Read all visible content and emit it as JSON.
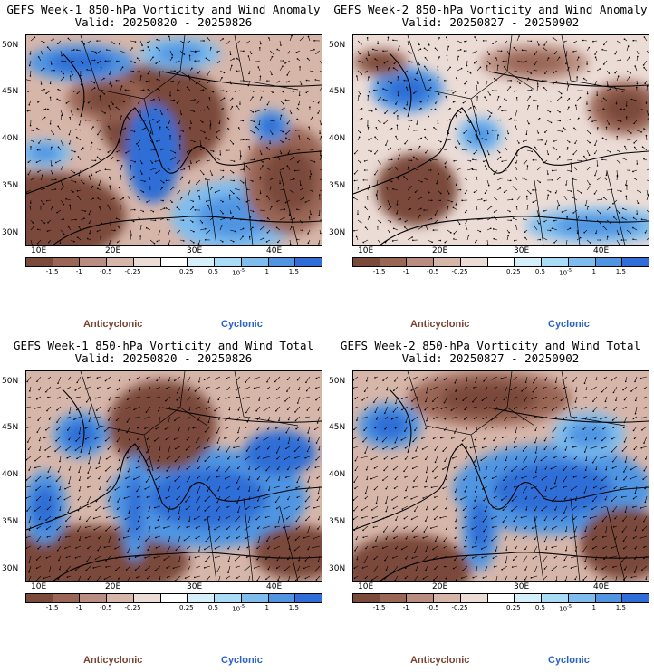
{
  "panels": [
    {
      "title_line1": "GEFS Week-1 850-hPa Vorticity and Wind Anomaly",
      "title_line2": "Valid: 20250820 - 20250826",
      "variant": "anomaly-w1"
    },
    {
      "title_line1": "GEFS Week-2 850-hPa Vorticity and Wind Anomaly",
      "title_line2": "Valid: 20250827 - 20250902",
      "variant": "anomaly-w2"
    },
    {
      "title_line1": "GEFS Week-1 850-hPa Vorticity and Wind Total",
      "title_line2": "Valid: 20250820 - 20250826",
      "variant": "total-w1"
    },
    {
      "title_line1": "GEFS Week-2 850-hPa Vorticity and Wind Total",
      "title_line2": "Valid: 20250827 - 20250902",
      "variant": "total-w2"
    }
  ],
  "lat_labels": [
    "50N",
    "45N",
    "40N",
    "35N",
    "30N"
  ],
  "lon_labels": [
    "10E",
    "20E",
    "30E",
    "40E"
  ],
  "colorbar": {
    "colors": [
      "#7a4a3a",
      "#9a6656",
      "#b98e80",
      "#d7b6aa",
      "#ecdcd6",
      "#ffffff",
      "#d6f0fb",
      "#a9dcf6",
      "#7fbdee",
      "#4f95e2",
      "#2f6ed6"
    ],
    "tick_labels": [
      "-1.5",
      "-1",
      "-0.5",
      "-0.25",
      "0.25",
      "0.5",
      "1",
      "1.5"
    ],
    "multiplier": "10",
    "multiplier_exp": "-5"
  },
  "legend": {
    "anticyclonic": "Anticyclonic",
    "cyclonic": "Cyclonic"
  }
}
